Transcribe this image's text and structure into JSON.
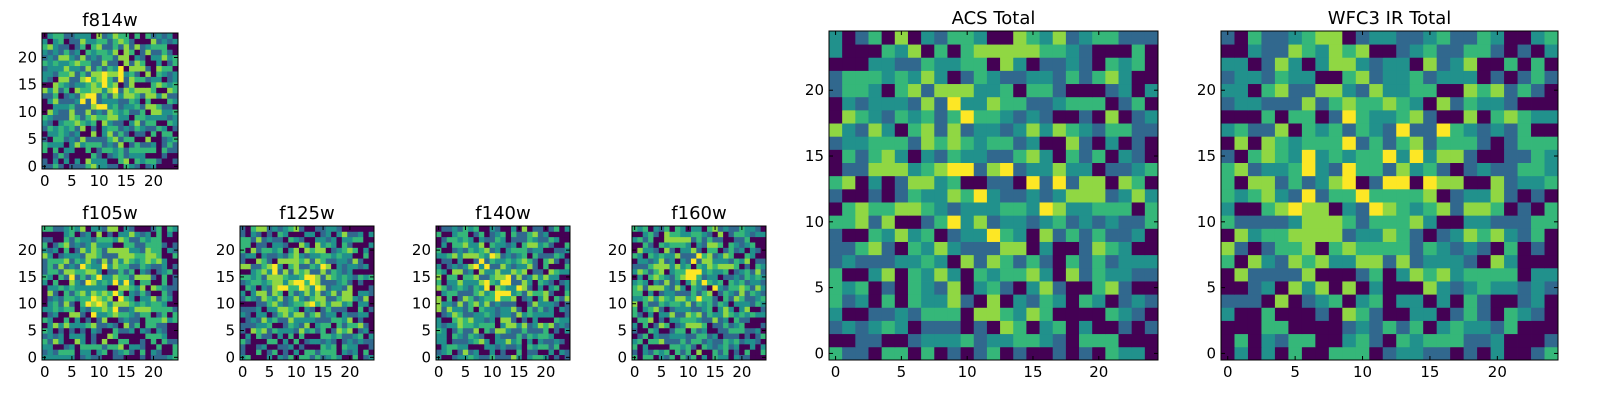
{
  "chart_data": [
    {
      "id": "f814w",
      "type": "heatmap",
      "title": "f814w",
      "grid_size": 25,
      "x_ticks": [
        "0",
        "5",
        "10",
        "15",
        "20"
      ],
      "y_ticks": [
        "0",
        "5",
        "10",
        "15",
        "20"
      ],
      "colormap": "viridis",
      "xlim": [
        0,
        25
      ],
      "ylim": [
        0,
        25
      ]
    },
    {
      "id": "f105w",
      "type": "heatmap",
      "title": "f105w",
      "grid_size": 25,
      "x_ticks": [
        "0",
        "5",
        "10",
        "15",
        "20"
      ],
      "y_ticks": [
        "0",
        "5",
        "10",
        "15",
        "20"
      ],
      "colormap": "viridis",
      "xlim": [
        0,
        25
      ],
      "ylim": [
        0,
        25
      ]
    },
    {
      "id": "f125w",
      "type": "heatmap",
      "title": "f125w",
      "grid_size": 25,
      "x_ticks": [
        "0",
        "5",
        "10",
        "15",
        "20"
      ],
      "y_ticks": [
        "0",
        "5",
        "10",
        "15",
        "20"
      ],
      "colormap": "viridis",
      "xlim": [
        0,
        25
      ],
      "ylim": [
        0,
        25
      ]
    },
    {
      "id": "f140w",
      "type": "heatmap",
      "title": "f140w",
      "grid_size": 25,
      "x_ticks": [
        "0",
        "5",
        "10",
        "15",
        "20"
      ],
      "y_ticks": [
        "0",
        "5",
        "10",
        "15",
        "20"
      ],
      "colormap": "viridis",
      "xlim": [
        0,
        25
      ],
      "ylim": [
        0,
        25
      ]
    },
    {
      "id": "f160w",
      "type": "heatmap",
      "title": "f160w",
      "grid_size": 25,
      "x_ticks": [
        "0",
        "5",
        "10",
        "15",
        "20"
      ],
      "y_ticks": [
        "0",
        "5",
        "10",
        "15",
        "20"
      ],
      "colormap": "viridis",
      "xlim": [
        0,
        25
      ],
      "ylim": [
        0,
        25
      ]
    },
    {
      "id": "acs-total",
      "type": "heatmap",
      "title": "ACS Total",
      "grid_size": 25,
      "x_ticks": [
        "0",
        "5",
        "10",
        "15",
        "20"
      ],
      "y_ticks": [
        "0",
        "5",
        "10",
        "15",
        "20"
      ],
      "colormap": "viridis",
      "xlim": [
        0,
        25
      ],
      "ylim": [
        0,
        25
      ]
    },
    {
      "id": "wfc3-ir-total",
      "type": "heatmap",
      "title": "WFC3 IR Total",
      "grid_size": 25,
      "x_ticks": [
        "0",
        "5",
        "10",
        "15",
        "20"
      ],
      "y_ticks": [
        "0",
        "5",
        "10",
        "15",
        "20"
      ],
      "colormap": "viridis",
      "xlim": [
        0,
        25
      ],
      "ylim": [
        0,
        25
      ]
    }
  ],
  "colors": {
    "dark": "#440154",
    "blue": "#31688e",
    "teal": "#21918c",
    "green": "#35b779",
    "lime": "#90d743",
    "yellow": "#fde725"
  }
}
